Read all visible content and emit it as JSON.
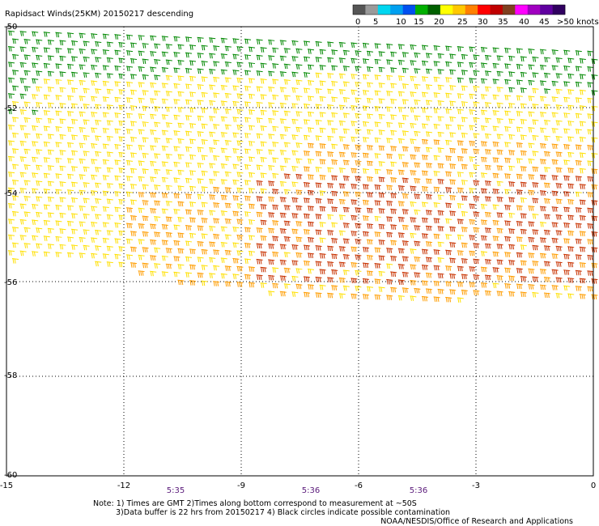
{
  "title": "Rapidsact Winds(25KM) 20150217 descending",
  "colorbar": {
    "colors": [
      "#555555",
      "#9a9a9a",
      "#00d6f0",
      "#00a0f0",
      "#0050f0",
      "#00b000",
      "#006000",
      "#ffff00",
      "#ffc800",
      "#ff8000",
      "#ff0000",
      "#c00000",
      "#804020",
      "#ff00ff",
      "#a000c0",
      "#6000a0",
      "#300060"
    ],
    "labels": [
      "0",
      "5",
      "10",
      "15",
      "20",
      "25",
      "30",
      "35",
      "40",
      "45",
      ">50 knots"
    ]
  },
  "map": {
    "lon_range": [
      -15,
      0
    ],
    "lat_range": [
      -60,
      -50
    ],
    "x_ticks": [
      "-15",
      "-12",
      "-9",
      "-6",
      "-3",
      "0"
    ],
    "y_ticks": [
      "-50",
      "-52",
      "-54",
      "-56",
      "-58",
      "-60"
    ],
    "grid": "dotted",
    "wind_barb_colors": {
      "green": "#008800",
      "yellow": "#ffe000",
      "orange": "#ff9d00",
      "red": "#c83200"
    }
  },
  "times": [
    "5:35",
    "5:36",
    "5:36"
  ],
  "notes": [
    "Note: 1) Times are GMT 2)Times along bottom correspond to measurement at ~50S",
    "3)Data buffer is 22 hrs from 20150217 4) Black circles indicate possible contamination",
    "NOAA/NESDIS/Office of Research and Applications"
  ]
}
